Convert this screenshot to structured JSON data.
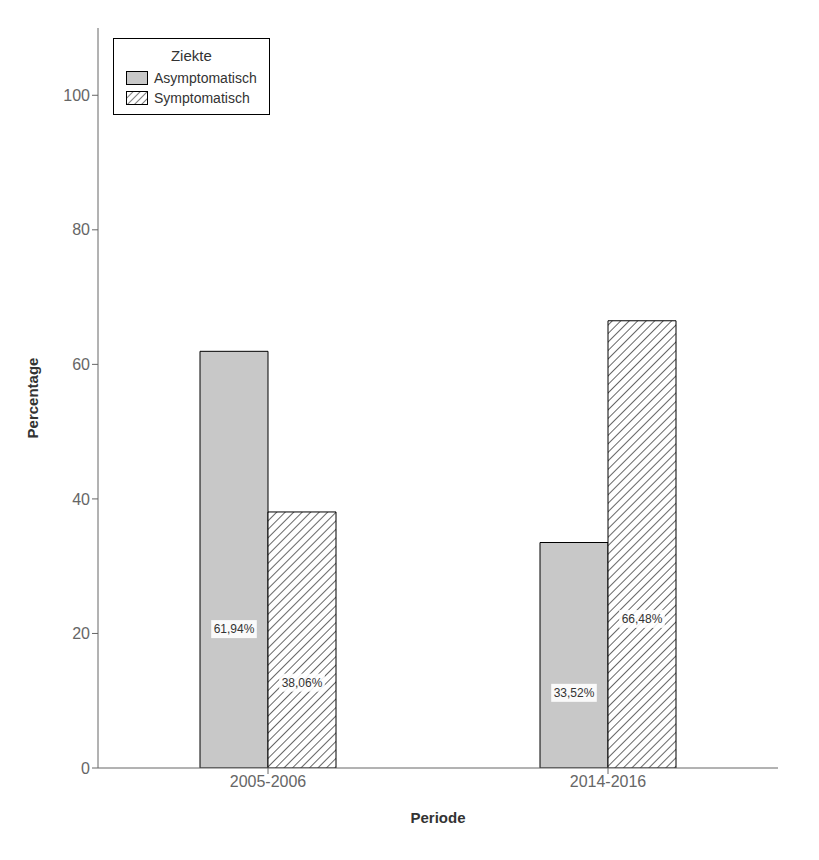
{
  "chart_data": {
    "type": "bar",
    "categories": [
      "2005-2006",
      "2014-2016"
    ],
    "series": [
      {
        "name": "Asymptomatisch",
        "color": "#c8c8c8",
        "values": [
          61.94,
          33.52
        ],
        "value_labels": [
          "61,94%",
          "33,52%"
        ]
      },
      {
        "name": "Symptomatisch",
        "color": "white",
        "values": [
          38.06,
          66.48
        ],
        "value_labels": [
          "38,06%",
          "66,48%"
        ]
      }
    ],
    "xlabel": "Periode",
    "ylabel": "Percentage",
    "legend_title": "Ziekte",
    "ylim": [
      0,
      110
    ],
    "yticks": [
      0,
      20,
      40,
      60,
      80,
      100
    ],
    "grid": false,
    "legend": "upper left",
    "data_labels": true
  }
}
